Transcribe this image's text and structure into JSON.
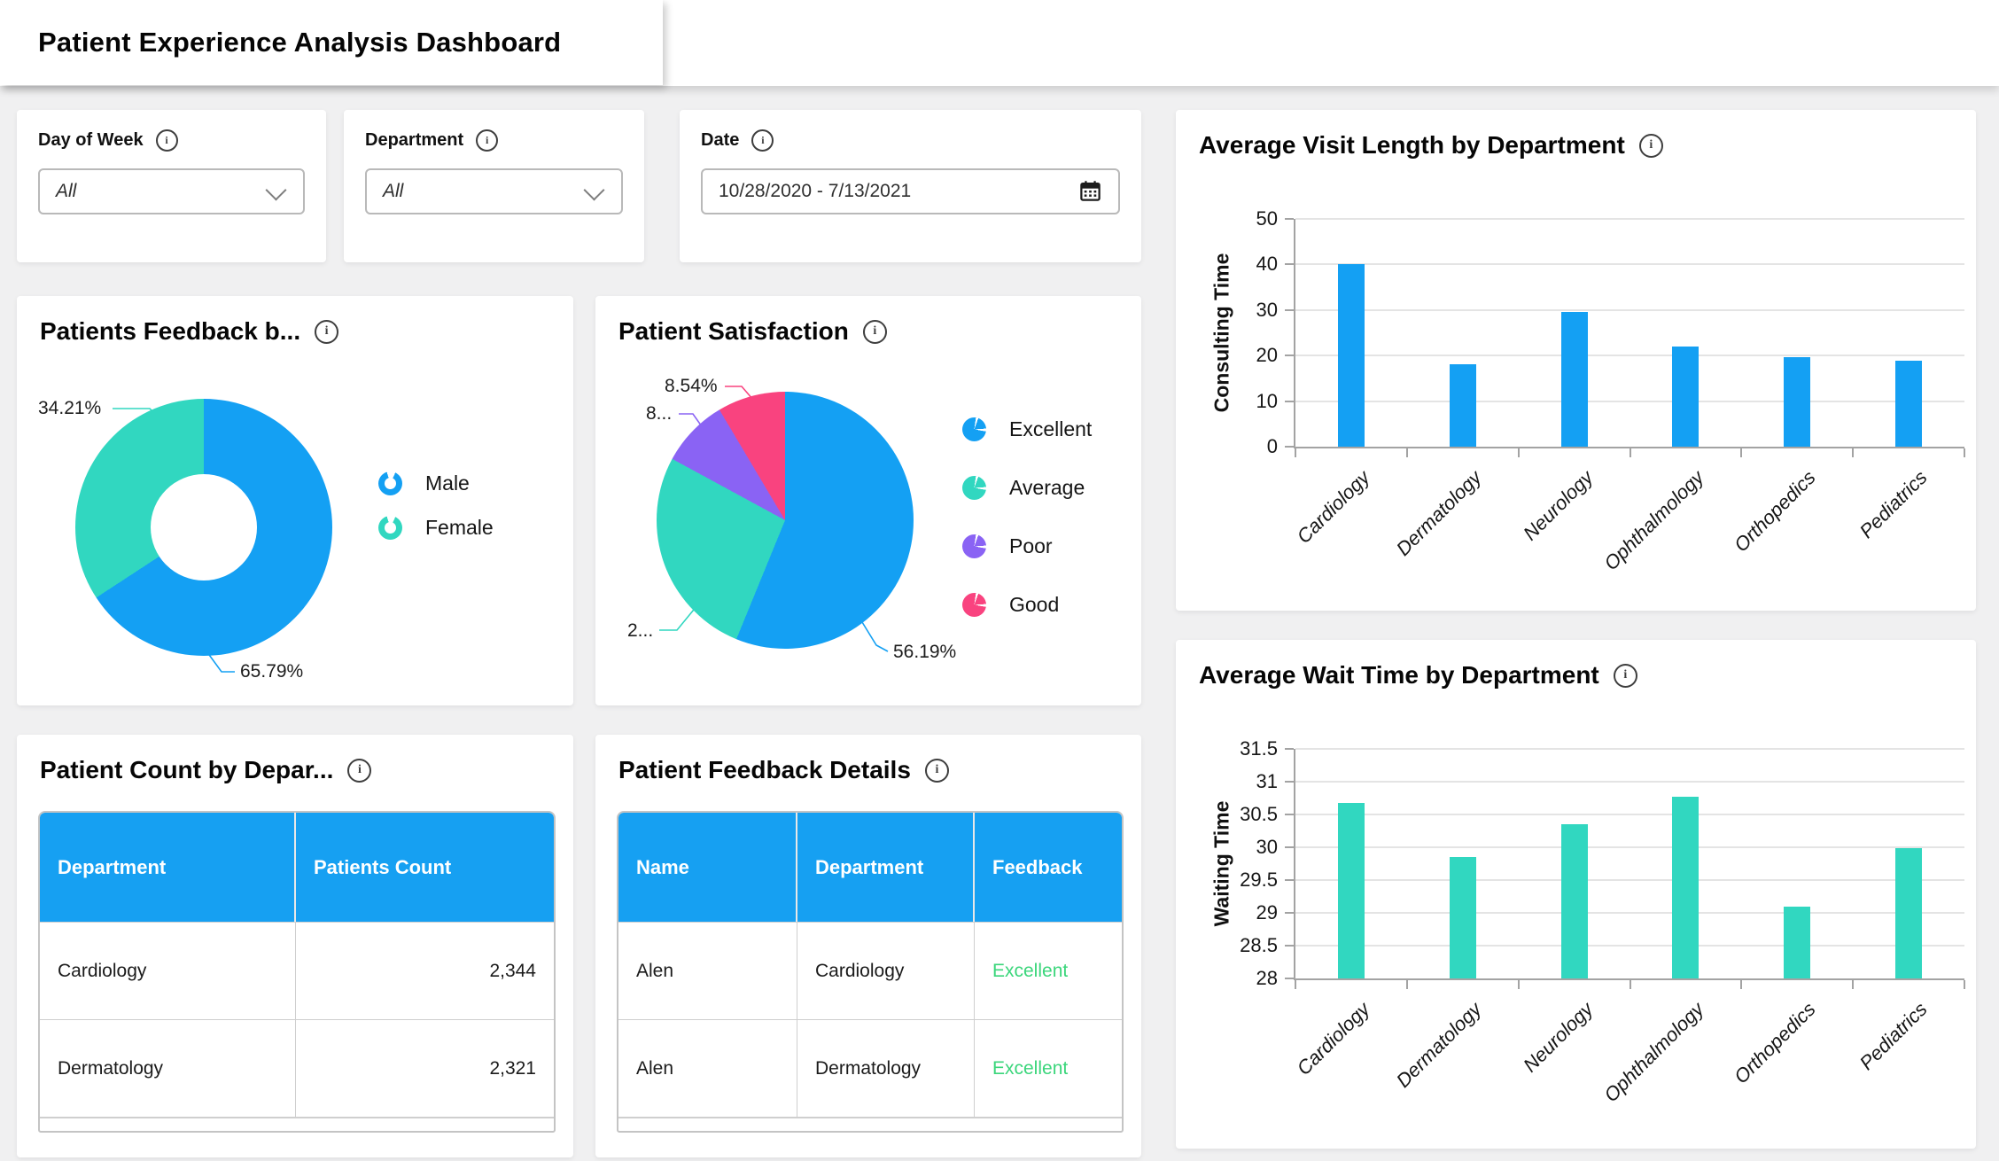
{
  "header": {
    "title": "Patient Experience Analysis Dashboard"
  },
  "filters": {
    "day_of_week": {
      "label": "Day of Week",
      "value": "All"
    },
    "department": {
      "label": "Department",
      "value": "All"
    },
    "date": {
      "label": "Date",
      "value": "10/28/2020 - 7/13/2021"
    }
  },
  "tables": {
    "count": {
      "title": "Patient Count by Depar...",
      "columns": [
        "Department",
        "Patients Count"
      ],
      "aligns": [
        "left",
        "right"
      ],
      "rows": [
        [
          "Cardiology",
          "2,344"
        ],
        [
          "Dermatology",
          "2,321"
        ]
      ]
    },
    "feedback": {
      "title": "Patient Feedback Details",
      "columns": [
        "Name",
        "Department",
        "Feedback"
      ],
      "aligns": [
        "left",
        "left",
        "left"
      ],
      "cell_colors": [
        null,
        null,
        "#3BD67B"
      ],
      "rows": [
        [
          "Alen",
          "Cardiology",
          "Excellent"
        ],
        [
          "Alen",
          "Dermatology",
          "Excellent"
        ]
      ]
    }
  },
  "chart_data": [
    {
      "type": "pie",
      "subtype": "donut",
      "title": "Patients Feedback b...",
      "labels": [
        "Male",
        "Female"
      ],
      "values": [
        65.79,
        34.21
      ],
      "unit": "%",
      "colors": [
        "#14A0F3",
        "#31D7C0"
      ],
      "slice_labels": [
        "65.79%",
        "34.21%"
      ],
      "legend_position": "right"
    },
    {
      "type": "pie",
      "title": "Patient Satisfaction",
      "labels": [
        "Excellent",
        "Average",
        "Poor",
        "Good"
      ],
      "values": [
        56.19,
        26.73,
        8.54,
        8.54
      ],
      "unit": "%",
      "colors": [
        "#14A0F3",
        "#31D7C0",
        "#8A63F4",
        "#F9437F"
      ],
      "slice_labels": [
        "56.19%",
        "2...",
        "8...",
        "8.54%"
      ],
      "legend_position": "right"
    },
    {
      "type": "bar",
      "title": "Average Visit Length by Department",
      "categories": [
        "Cardiology",
        "Dermatology",
        "Neurology",
        "Ophthalmology",
        "Orthopedics",
        "Pediatrics"
      ],
      "values": [
        40,
        18,
        29.6,
        22,
        19.6,
        18.9
      ],
      "xlabel": "",
      "ylabel": "Consulting Time",
      "ylim": [
        0,
        50
      ],
      "yticks": [
        0,
        10,
        20,
        30,
        40,
        50
      ],
      "color": "#14A0F3",
      "grid": true
    },
    {
      "type": "bar",
      "title": "Average Wait Time by Department",
      "categories": [
        "Cardiology",
        "Dermatology",
        "Neurology",
        "Ophthalmology",
        "Orthopedics",
        "Pediatrics"
      ],
      "values": [
        30.68,
        29.85,
        30.35,
        30.77,
        29.1,
        29.98
      ],
      "xlabel": "",
      "ylabel": "Waiting Time",
      "ylim": [
        28,
        31.5
      ],
      "yticks": [
        28,
        28.5,
        29,
        29.5,
        30,
        30.5,
        31,
        31.5
      ],
      "color": "#31D7C0",
      "grid": true
    }
  ]
}
